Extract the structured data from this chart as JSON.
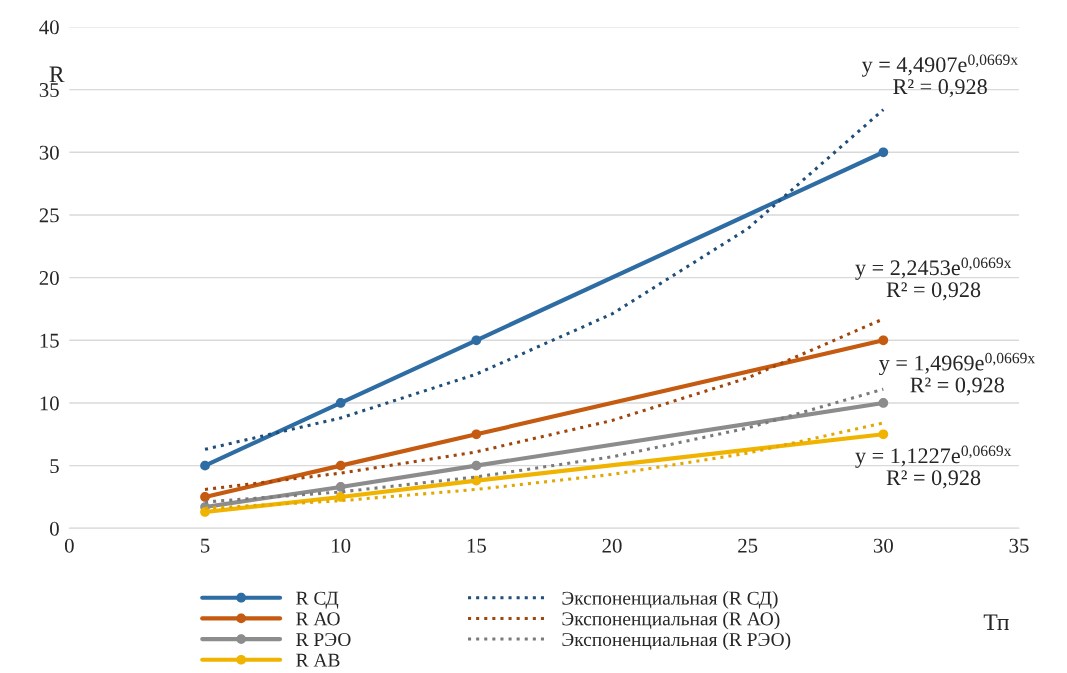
{
  "chart_data": {
    "type": "line",
    "xlabel": "Тп",
    "ylabel": "R",
    "xlim": [
      0,
      35
    ],
    "xticks": [
      0,
      5,
      10,
      15,
      20,
      25,
      30,
      35
    ],
    "ylim": [
      0,
      40
    ],
    "yticks": [
      0,
      5,
      10,
      15,
      20,
      25,
      30,
      35,
      40
    ],
    "grid": "y",
    "legend": "bottom",
    "series": [
      {
        "name": "R СД",
        "color": "#2e6ca4",
        "x": [
          5,
          10,
          15,
          30
        ],
        "values": [
          5,
          10,
          15,
          30
        ],
        "marker": "circle",
        "line_style": "solid"
      },
      {
        "name": "R АО",
        "color": "#c55a11",
        "x": [
          5,
          10,
          15,
          30
        ],
        "values": [
          2.5,
          5,
          7.5,
          15
        ],
        "marker": "circle",
        "line_style": "solid"
      },
      {
        "name": "R РЭО",
        "color": "#8c8c8c",
        "x": [
          5,
          10,
          15,
          30
        ],
        "values": [
          1.7,
          3.3,
          5,
          10
        ],
        "marker": "circle",
        "line_style": "solid"
      },
      {
        "name": "R АВ",
        "color": "#f0b400",
        "x": [
          5,
          10,
          15,
          30
        ],
        "values": [
          1.3,
          2.5,
          3.8,
          7.5
        ],
        "marker": "circle",
        "line_style": "solid"
      },
      {
        "name": "Экспоненциальная (R СД)",
        "color": "#1f4e79",
        "x": [
          5,
          10,
          15,
          20,
          25,
          30
        ],
        "values": [
          6.3,
          8.8,
          12.3,
          17.1,
          23.9,
          33.4
        ],
        "marker": "none",
        "line_style": "dotted"
      },
      {
        "name": "Экспоненциальная (R АО)",
        "color": "#a0460c",
        "x": [
          5,
          10,
          15,
          20,
          25,
          30
        ],
        "values": [
          3.1,
          4.4,
          6.1,
          8.6,
          12,
          16.7
        ],
        "marker": "none",
        "line_style": "dotted"
      },
      {
        "name": "Экспоненциальная (R РЭО)",
        "color": "#7a7a7a",
        "x": [
          5,
          10,
          15,
          20,
          25,
          30
        ],
        "values": [
          2.1,
          2.9,
          4.1,
          5.7,
          8,
          11.1
        ],
        "marker": "none",
        "line_style": "dotted"
      },
      {
        "color": "#e0a800",
        "x": [
          5,
          10,
          15,
          20,
          25,
          30
        ],
        "values": [
          1.6,
          2.2,
          3.1,
          4.3,
          6,
          8.4
        ],
        "marker": "none",
        "line_style": "dotted"
      }
    ],
    "annotations": [
      "y = 4,4907e$^{0,0669x}$\nR² = 0,928",
      "y = 2,2453e$^{0,0669x}$\nR² = 0,928",
      "y = 1,4969e$^{0,0669x}$\nR² = 0,928",
      "y = 1,1227e$^{0,0669x}$\nR² = 0,928"
    ]
  }
}
